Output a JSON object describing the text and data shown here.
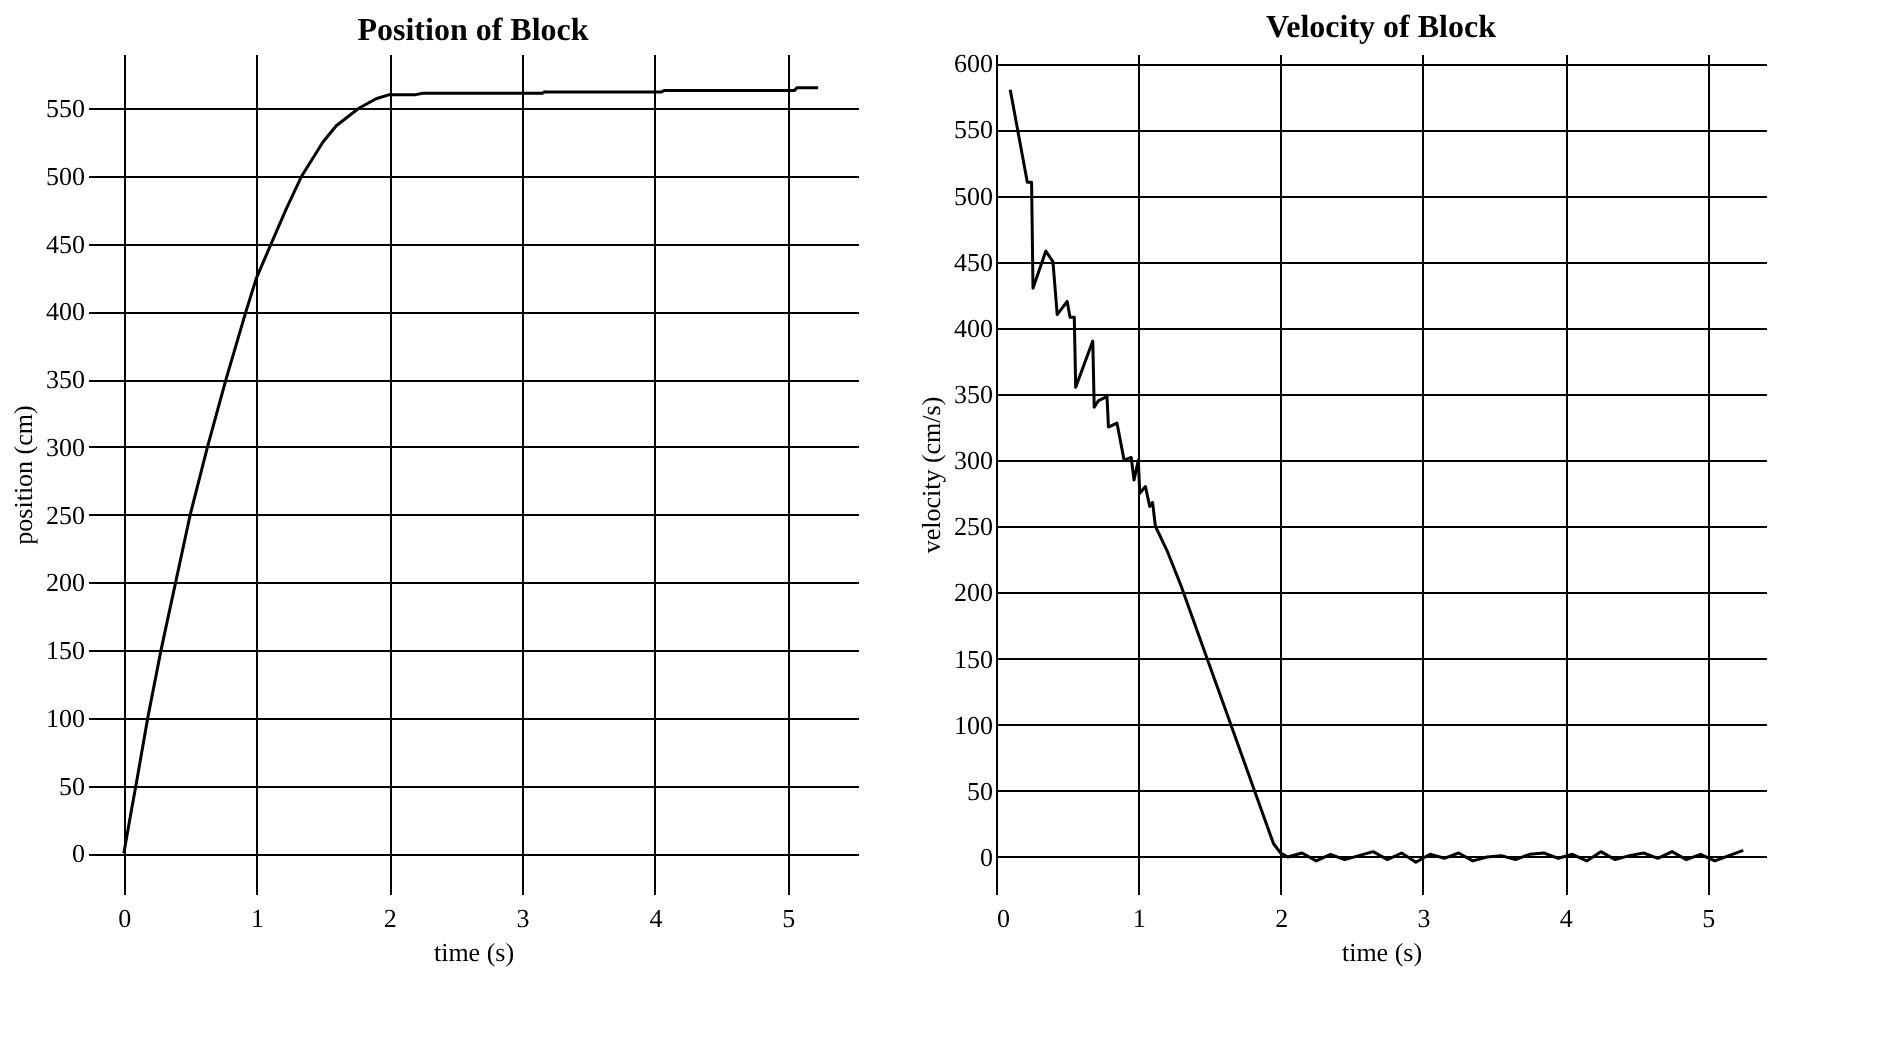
{
  "chart_data": [
    {
      "type": "line",
      "title": "Position of Block",
      "xlabel": "time (s)",
      "ylabel": "position (cm)",
      "x": [
        0,
        0.05,
        0.1,
        0.18,
        0.28,
        0.39,
        0.5,
        0.63,
        0.77,
        0.92,
        1.0,
        1.11,
        1.22,
        1.34,
        1.5,
        1.6,
        1.77,
        1.9,
        2.0,
        2.2,
        2.25,
        3.15,
        3.17,
        4.05,
        4.07,
        5.05,
        5.07,
        5.23
      ],
      "series": [
        {
          "color": "#000000",
          "values": [
            0,
            28,
            55,
            100,
            150,
            200,
            250,
            300,
            350,
            400,
            425,
            450,
            475,
            500,
            525,
            537,
            550,
            557,
            560,
            560,
            561,
            561,
            562,
            562,
            563,
            563,
            565,
            565
          ]
        }
      ],
      "xlim": [
        -0.27,
        5.53
      ],
      "ylim": [
        -30,
        590
      ],
      "xticks": [
        0,
        1,
        2,
        3,
        4,
        5
      ],
      "yticks": [
        0,
        50,
        100,
        150,
        200,
        250,
        300,
        350,
        400,
        450,
        500,
        550
      ],
      "grid": true,
      "marker": "none",
      "line_style": "solid"
    },
    {
      "type": "line",
      "title": "Velocity of Block",
      "xlabel": "time (s)",
      "ylabel": "velocity (cm/s)",
      "x": [
        0.1,
        0.22,
        0.25,
        0.26,
        0.35,
        0.4,
        0.43,
        0.5,
        0.52,
        0.55,
        0.56,
        0.68,
        0.69,
        0.72,
        0.78,
        0.79,
        0.85,
        0.9,
        0.95,
        0.97,
        1.0,
        1.01,
        1.05,
        1.08,
        1.1,
        1.12,
        1.2,
        1.3,
        1.4,
        1.5,
        1.6,
        1.7,
        1.8,
        1.9,
        1.95,
        2.0,
        2.05,
        2.15,
        2.25,
        2.35,
        2.45,
        2.55,
        2.65,
        2.75,
        2.85,
        2.95,
        3.05,
        3.15,
        3.25,
        3.35,
        3.45,
        3.55,
        3.65,
        3.75,
        3.85,
        3.95,
        4.05,
        4.15,
        4.25,
        4.35,
        4.45,
        4.55,
        4.65,
        4.75,
        4.85,
        4.95,
        5.05,
        5.15,
        5.25
      ],
      "series": [
        {
          "color": "#000000",
          "values": [
            580,
            510,
            510,
            430,
            458,
            450,
            410,
            420,
            408,
            408,
            355,
            390,
            340,
            345,
            348,
            325,
            328,
            300,
            302,
            285,
            300,
            275,
            280,
            265,
            268,
            250,
            232,
            205,
            175,
            145,
            115,
            85,
            55,
            25,
            10,
            3,
            0,
            3,
            -3,
            2,
            -2,
            1,
            4,
            -2,
            3,
            -4,
            2,
            -1,
            3,
            -3,
            0,
            1,
            -2,
            2,
            3,
            -1,
            2,
            -3,
            4,
            -2,
            1,
            3,
            -1,
            4,
            -2,
            2,
            -3,
            1,
            5
          ]
        }
      ],
      "xlim": [
        0,
        5.41
      ],
      "ylim": [
        -28,
        607
      ],
      "xticks": [
        0,
        1,
        2,
        3,
        4,
        5
      ],
      "yticks": [
        0,
        50,
        100,
        150,
        200,
        250,
        300,
        350,
        400,
        450,
        500,
        550,
        600
      ],
      "grid": true,
      "marker": "none",
      "line_style": "solid"
    }
  ]
}
